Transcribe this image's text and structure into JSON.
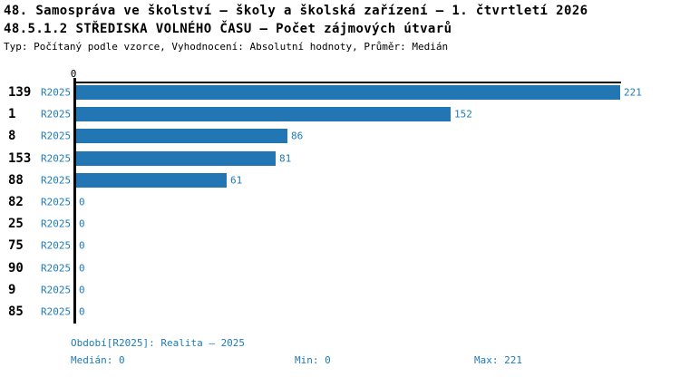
{
  "header": {
    "title_line1": "48. Samospráva ve školství – školy a školská zařízení – 1. čtvrtletí 2026",
    "title_line2": "48.5.1.2 STŘEDISKA VOLNÉHO ČASU – Počet zájmových útvarů",
    "subtitle": "Typ: Počítaný podle vzorce, Vyhodnocení: Absolutní hodnoty, Průměr: Medián"
  },
  "chart_data": {
    "type": "bar",
    "orientation": "horizontal",
    "title": "48.5.1.2 STŘEDISKA VOLNÉHO ČASU – Počet zájmových útvarů",
    "categories": [
      "139",
      "1",
      "8",
      "153",
      "88",
      "82",
      "25",
      "75",
      "90",
      "9",
      "85"
    ],
    "series": [
      {
        "name": "R2025",
        "values": [
          221,
          152,
          86,
          81,
          61,
          0,
          0,
          0,
          0,
          0,
          0
        ]
      }
    ],
    "xlim": [
      0,
      221
    ],
    "axis_origin_tick": "0",
    "bar_value_labels_shown": true,
    "grid": false,
    "legend_position": "none",
    "stats": {
      "median": 0,
      "min": 0,
      "max": 221
    }
  },
  "footer": {
    "period_line": "Období[R2025]: Realita – 2025",
    "median_line": "Medián: 0",
    "min_line": "Min: 0",
    "max_line": "Max: 221"
  },
  "colors": {
    "bar": "#2276b4",
    "accent_text": "#1e7bb7",
    "title_text": "#000000",
    "axis": "#000000",
    "background": "#ffffff"
  }
}
